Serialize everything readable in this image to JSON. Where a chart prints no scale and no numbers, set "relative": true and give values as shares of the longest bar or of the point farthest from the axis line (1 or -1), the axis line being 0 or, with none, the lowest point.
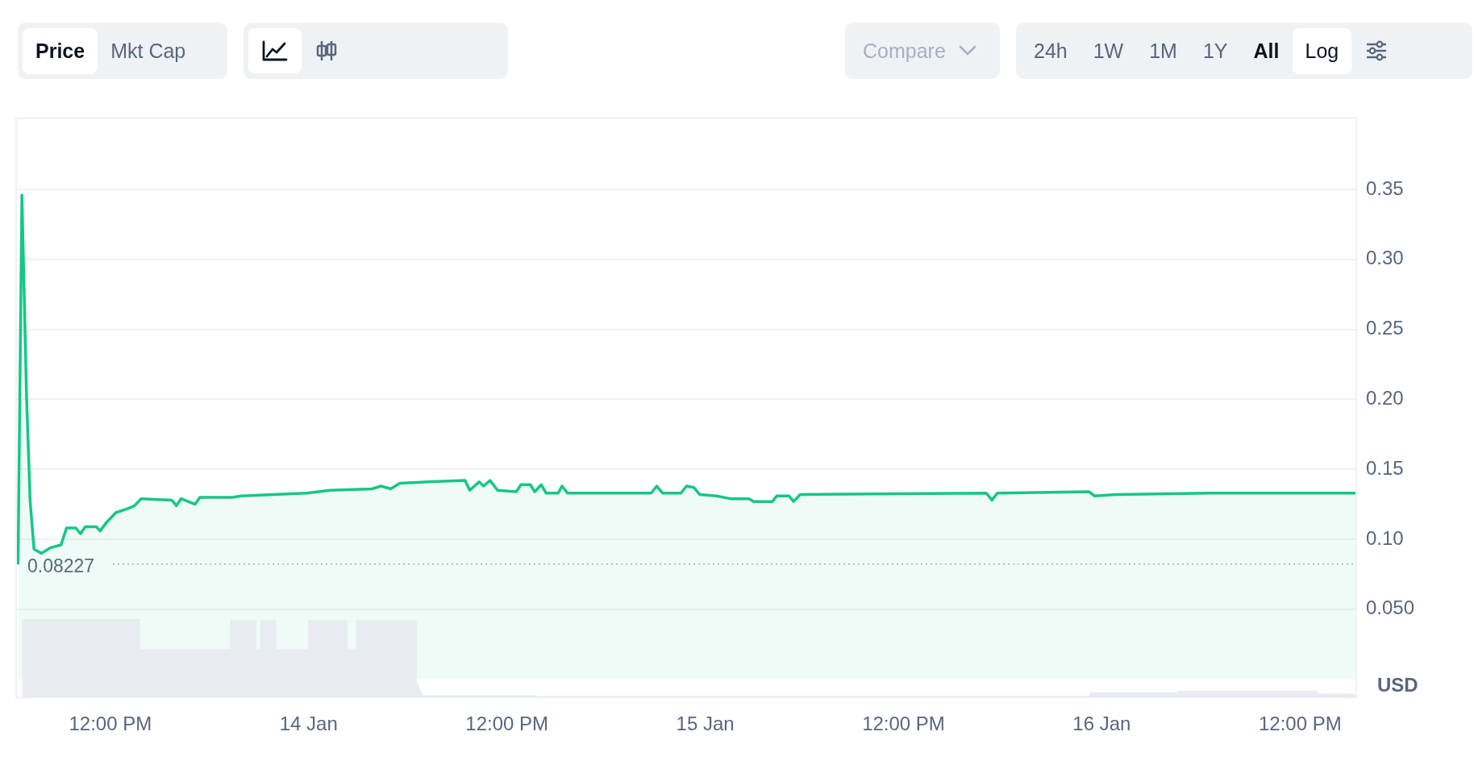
{
  "chart_data": [
    {
      "type": "area",
      "ylabel": "USD",
      "annotations": [
        "Price",
        "Mkt Cap",
        "Compare",
        "24h",
        "1W",
        "1M",
        "1Y",
        "All",
        "Log"
      ],
      "xlim": [
        "--01-13T06:18",
        "--01-16T15:24"
      ],
      "xticks": [
        {
          "value": "--01-13T12:00",
          "label": "12:00 PM"
        },
        {
          "value": "--01-14T00:00",
          "label": "14 Jan"
        },
        {
          "value": "--01-14T12:00",
          "label": "12:00 PM"
        },
        {
          "value": "--01-15T00:00",
          "label": "15 Jan"
        },
        {
          "value": "--01-15T12:00",
          "label": "12:00 PM"
        },
        {
          "value": "--01-16T00:00",
          "label": "16 Jan"
        },
        {
          "value": "--01-16T12:00",
          "label": "12:00 PM"
        }
      ],
      "ylim": [
        -0.013,
        0.401
      ],
      "yticks": [
        {
          "value": 0.05,
          "label": "0.050"
        },
        {
          "value": 0.1,
          "label": "0.10"
        },
        {
          "value": 0.15,
          "label": "0.15"
        },
        {
          "value": 0.2,
          "label": "0.20"
        },
        {
          "value": 0.25,
          "label": "0.25"
        },
        {
          "value": 0.3,
          "label": "0.30"
        },
        {
          "value": 0.35,
          "label": "0.35"
        }
      ],
      "grid": "y",
      "legend": false,
      "marker": "none",
      "line_style": "solid",
      "ref_lines": [
        {
          "axis": "y",
          "value": 0.08227,
          "label": "0.08227",
          "line_style": "dotted",
          "color": "#a6b0c3"
        }
      ],
      "series": [
        {
          "color": "#16c784",
          "x": [
            "--01-13T06:25",
            "--01-13T06:39",
            "--01-13T06:56",
            "--01-13T07:09",
            "--01-13T07:23",
            "--01-13T07:50",
            "--01-13T08:23",
            "--01-13T09:01",
            "--01-13T09:21",
            "--01-13T09:55",
            "--01-13T10:12",
            "--01-13T10:29",
            "--01-13T11:09",
            "--01-13T11:23",
            "--01-13T11:46",
            "--01-13T12:20",
            "--01-13T13:04",
            "--01-13T13:28",
            "--01-13T13:52",
            "--01-13T15:43",
            "--01-13T16:00",
            "--01-13T16:17",
            "--01-13T17:08",
            "--01-13T17:25",
            "--01-13T19:23",
            "--01-13T19:56",
            "--01-13T23:53",
            "--01-14T01:18",
            "--01-14T03:50",
            "--01-14T04:23",
            "--01-14T04:58",
            "--01-14T05:31",
            "--01-14T07:13",
            "--01-14T09:28",
            "--01-14T09:45",
            "--01-14T10:19",
            "--01-14T10:35",
            "--01-14T10:59",
            "--01-14T11:26",
            "--01-14T12:34",
            "--01-14T12:51",
            "--01-14T13:25",
            "--01-14T13:41",
            "--01-14T14:05",
            "--01-14T14:22",
            "--01-14T15:06",
            "--01-14T15:20",
            "--01-14T15:40",
            "--01-14T20:44",
            "--01-14T21:04",
            "--01-14T21:25",
            "--01-14T22:32",
            "--01-14T22:52",
            "--01-14T23:19",
            "--01-14T23:40",
            "--01-15T00:41",
            "--01-15T01:31",
            "--01-15T02:39",
            "--01-15T02:56",
            "--01-15T04:04",
            "--01-15T04:20",
            "--01-15T05:04",
            "--01-15T05:21",
            "--01-15T05:45",
            "--01-15T17:01",
            "--01-15T17:21",
            "--01-15T17:41",
            "--01-15T23:13",
            "--01-15T23:33",
            "--01-16T00:54",
            "--01-16T06:32",
            "--01-16T15:23"
          ],
          "values": [
            0.082,
            0.346,
            0.201,
            0.127,
            0.093,
            0.09,
            0.094,
            0.096,
            0.108,
            0.108,
            0.104,
            0.109,
            0.109,
            0.106,
            0.112,
            0.119,
            0.122,
            0.124,
            0.129,
            0.128,
            0.124,
            0.129,
            0.125,
            0.13,
            0.13,
            0.131,
            0.133,
            0.135,
            0.136,
            0.138,
            0.136,
            0.14,
            0.141,
            0.142,
            0.135,
            0.141,
            0.138,
            0.142,
            0.135,
            0.134,
            0.139,
            0.139,
            0.134,
            0.139,
            0.133,
            0.133,
            0.138,
            0.133,
            0.133,
            0.138,
            0.133,
            0.133,
            0.138,
            0.137,
            0.132,
            0.131,
            0.129,
            0.129,
            0.127,
            0.127,
            0.131,
            0.131,
            0.127,
            0.132,
            0.133,
            0.128,
            0.133,
            0.134,
            0.131,
            0.132,
            0.133,
            0.133
          ]
        }
      ]
    },
    {
      "type": "area",
      "relative": true,
      "legend": false,
      "marker": "none",
      "xlim": [
        "--01-13T06:18",
        "--01-16T15:24"
      ],
      "series": [
        {
          "color": "#e8ebef",
          "x": [
            "--01-13T06:42",
            "--01-13T06:42",
            "--01-13T13:45",
            "--01-13T13:45",
            "--01-13T19:18",
            "--01-13T19:18",
            "--01-13T20:48",
            "--01-13T20:48",
            "--01-13T21:06",
            "--01-13T21:06",
            "--01-13T22:00",
            "--01-13T22:00",
            "--01-14T00:00",
            "--01-14T00:00",
            "--01-14T02:18",
            "--01-14T02:18",
            "--01-14T02:54",
            "--01-14T02:54",
            "--01-14T06:30",
            "--01-14T06:30",
            "--01-14T06:54",
            "--01-14T13:42",
            "--01-14T13:42",
            "--01-15T23:18",
            "--01-15T23:18",
            "--01-16T04:36",
            "--01-16T04:36",
            "--01-16T13:00",
            "--01-16T13:00",
            "--01-16T15:18",
            "--01-16T15:18"
          ],
          "values": [
            0,
            1,
            1,
            0.61,
            0.61,
            0.98,
            0.98,
            0.61,
            0.61,
            0.98,
            0.98,
            0.61,
            0.61,
            0.98,
            0.98,
            0.61,
            0.61,
            0.98,
            0.98,
            0.2,
            0.02,
            0.02,
            0.01,
            0.01,
            0.06,
            0.06,
            0.08,
            0.08,
            0.04,
            0.04,
            0
          ]
        }
      ]
    }
  ]
}
